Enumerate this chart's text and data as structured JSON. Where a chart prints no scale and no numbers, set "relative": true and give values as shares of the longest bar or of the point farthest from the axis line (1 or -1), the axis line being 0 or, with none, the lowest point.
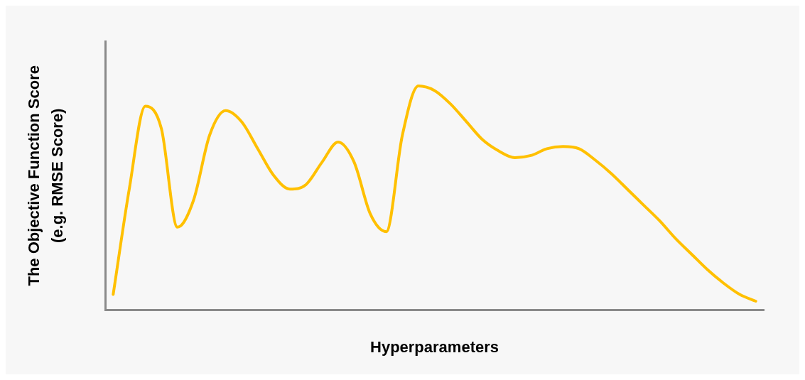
{
  "chart_data": {
    "type": "line",
    "relative": true,
    "xlabel": "Hyperparameters",
    "ylabel": "The Objective Function Score\n(e.g. RMSE Score)",
    "grid": false,
    "legend": false,
    "marker": "none",
    "line_style": "solid",
    "categories": [
      null,
      null,
      null,
      null,
      null,
      null,
      null,
      null,
      null,
      null,
      null,
      null,
      null,
      null,
      null,
      null,
      null,
      null,
      null,
      null,
      null,
      null,
      null,
      null,
      null,
      null,
      null,
      null,
      null,
      null,
      null,
      null,
      null,
      null,
      null,
      null,
      null,
      null,
      null,
      null,
      null
    ],
    "series": [
      {
        "color": "#ffc000",
        "values": [
          0.07,
          0.54,
          0.91,
          0.81,
          0.37,
          0.49,
          0.78,
          0.89,
          0.84,
          0.72,
          0.6,
          0.54,
          0.56,
          0.66,
          0.75,
          0.66,
          0.43,
          0.35,
          0.78,
          1,
          0.98,
          0.92,
          0.84,
          0.76,
          0.71,
          0.68,
          0.69,
          0.72,
          0.73,
          0.72,
          0.67,
          0.61,
          0.54,
          0.47,
          0.4,
          0.32,
          0.25,
          0.18,
          0.12,
          0.07,
          0.04
        ]
      }
    ]
  }
}
